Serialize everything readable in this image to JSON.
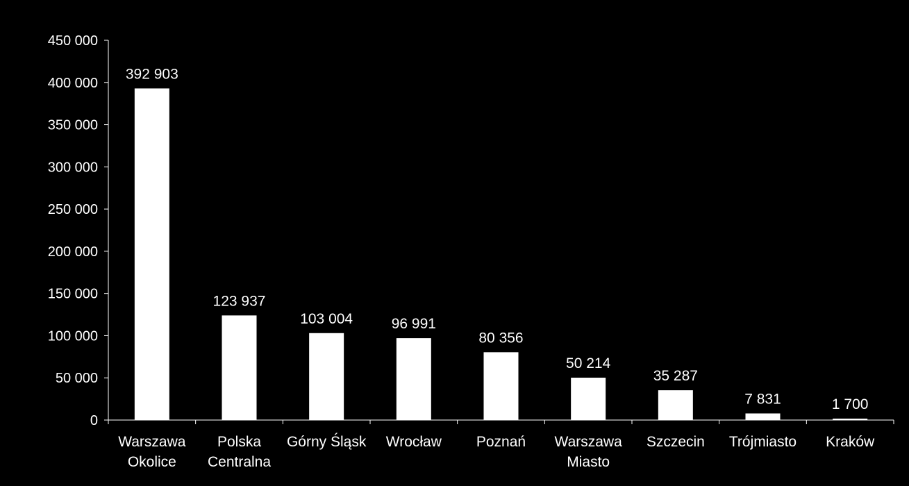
{
  "chart_data": {
    "type": "bar",
    "categories": [
      [
        "Warszawa",
        "Okolice"
      ],
      [
        "Polska",
        "Centralna"
      ],
      [
        "Górny Śląsk"
      ],
      [
        "Wrocław"
      ],
      [
        "Poznań"
      ],
      [
        "Warszawa",
        "Miasto"
      ],
      [
        "Szczecin"
      ],
      [
        "Trójmiasto"
      ],
      [
        "Kraków"
      ]
    ],
    "values": [
      392903,
      123937,
      103004,
      96991,
      80356,
      50214,
      35287,
      7831,
      1700
    ],
    "value_labels": [
      "392 903",
      "123 937",
      "103 004",
      "96 991",
      "80 356",
      "50 214",
      "35 287",
      "7 831",
      "1 700"
    ],
    "ylim": [
      0,
      450000
    ],
    "yticks": [
      0,
      50000,
      100000,
      150000,
      200000,
      250000,
      300000,
      350000,
      400000,
      450000
    ],
    "ytick_labels": [
      "0",
      "50 000",
      "100 000",
      "150 000",
      "200 000",
      "250 000",
      "300 000",
      "350 000",
      "400 000",
      "450 000"
    ],
    "grid": false,
    "legend": "none",
    "colors": {
      "background": "#000000",
      "bar": "#ffffff",
      "axis": "#ffffff",
      "text": "#ffffff"
    }
  }
}
